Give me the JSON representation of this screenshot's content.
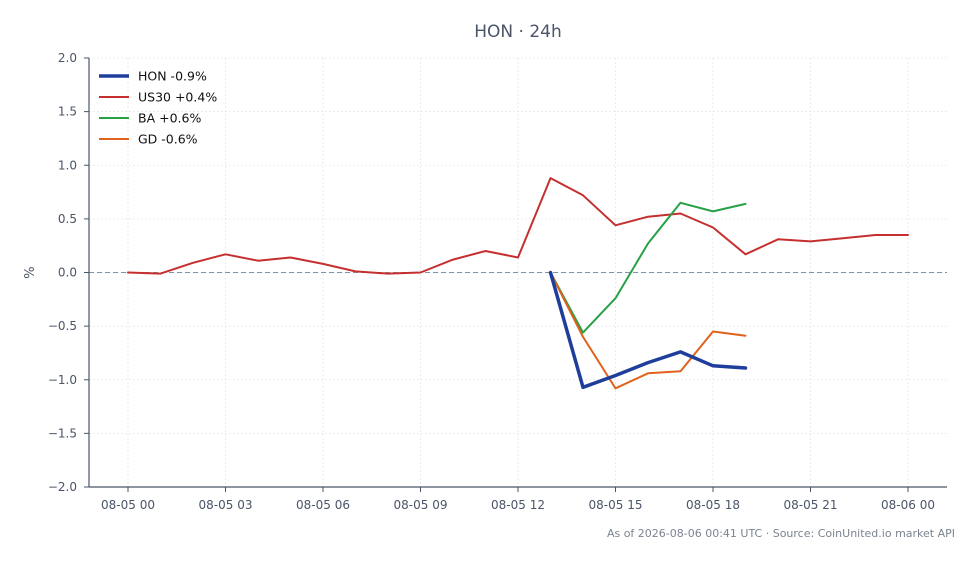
{
  "chart_data": {
    "type": "line",
    "title": "HON · 24h",
    "ylabel": "%",
    "xlabel": "",
    "ylim": [
      -2.0,
      2.0
    ],
    "yticks": [
      "2.0",
      "1.5",
      "1.0",
      "0.5",
      "0.0",
      "−0.5",
      "−1.0",
      "−1.5",
      "−2.0"
    ],
    "ytick_values": [
      2.0,
      1.5,
      1.0,
      0.5,
      0.0,
      -0.5,
      -1.0,
      -1.5,
      -2.0
    ],
    "xlim": [
      -1.2,
      25.2
    ],
    "xticks": [
      "08-05 00",
      "08-05 03",
      "08-05 06",
      "08-05 09",
      "08-05 12",
      "08-05 15",
      "08-05 18",
      "08-05 21",
      "08-06 00"
    ],
    "xtick_values": [
      0,
      3,
      6,
      9,
      12,
      15,
      18,
      21,
      24
    ],
    "grid": true,
    "legend_position": "top-left",
    "zero_line": true,
    "series": [
      {
        "name": "HON -0.9%",
        "color": "#1f3e9c",
        "width": 3.5,
        "x": [
          13,
          14,
          15,
          16,
          17,
          18,
          19
        ],
        "y": [
          0.0,
          -1.07,
          -0.96,
          -0.84,
          -0.74,
          -0.87,
          -0.89
        ]
      },
      {
        "name": "US30 +0.4%",
        "color": "#c62f2f",
        "width": 2,
        "x": [
          0,
          1,
          2,
          3,
          4,
          5,
          6,
          7,
          8,
          9,
          10,
          11,
          12,
          13,
          14,
          15,
          16,
          17,
          18,
          19,
          20,
          21,
          22,
          23,
          24
        ],
        "y": [
          0.0,
          -0.01,
          0.09,
          0.17,
          0.11,
          0.14,
          0.08,
          0.01,
          -0.01,
          0.0,
          0.12,
          0.2,
          0.14,
          0.88,
          0.72,
          0.44,
          0.52,
          0.55,
          0.42,
          0.17,
          0.31,
          0.29,
          0.32,
          0.35,
          0.35
        ]
      },
      {
        "name": "BA +0.6%",
        "color": "#27a046",
        "width": 2,
        "x": [
          13,
          14,
          15,
          16,
          17,
          18,
          19
        ],
        "y": [
          0.0,
          -0.56,
          -0.24,
          0.27,
          0.65,
          0.57,
          0.64
        ]
      },
      {
        "name": "GD -0.6%",
        "color": "#e0621d",
        "width": 2,
        "x": [
          13,
          14,
          15,
          16,
          17,
          18,
          19
        ],
        "y": [
          0.0,
          -0.6,
          -1.08,
          -0.94,
          -0.92,
          -0.55,
          -0.59
        ]
      }
    ],
    "footer": "As of 2026-08-06 00:41 UTC · Source: CoinUnited.io market API"
  }
}
